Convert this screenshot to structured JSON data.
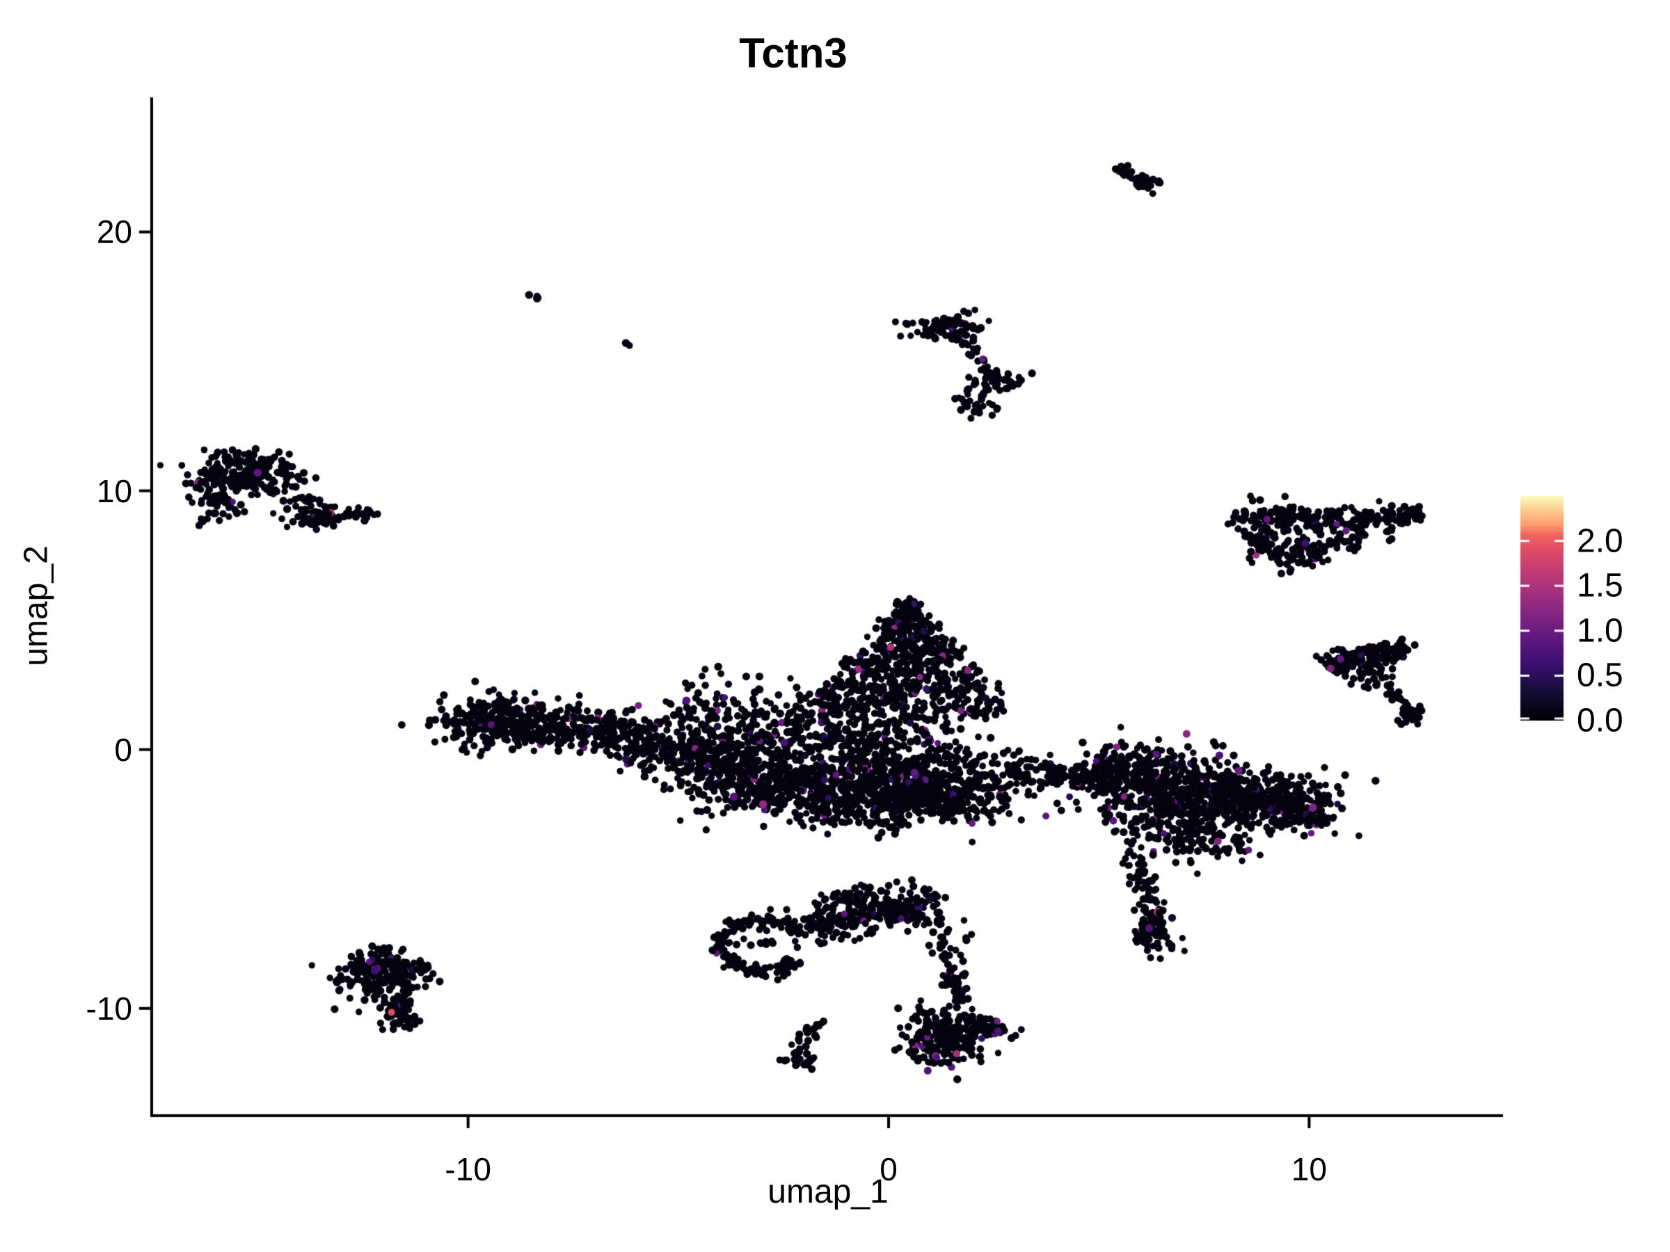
{
  "title": "Tctn3",
  "axes": {
    "x": {
      "label": "umap_1",
      "range": [
        -17.49,
        14.61
      ],
      "ticks": [
        {
          "value": -10,
          "label": "-10"
        },
        {
          "value": 0,
          "label": "0"
        },
        {
          "value": 10,
          "label": "10"
        }
      ]
    },
    "y": {
      "label": "umap_2",
      "range": [
        -14.09,
        25.2
      ],
      "ticks": [
        {
          "value": 20,
          "label": "20"
        },
        {
          "value": 10,
          "label": "10"
        },
        {
          "value": 0,
          "label": "0"
        },
        {
          "value": -10,
          "label": "-10"
        }
      ]
    }
  },
  "legend": {
    "range": [
      0,
      2.5
    ],
    "ticks": [
      {
        "value": 2.0,
        "label": "2.0"
      },
      {
        "value": 1.5,
        "label": "1.5"
      },
      {
        "value": 1.0,
        "label": "1.0"
      },
      {
        "value": 0.5,
        "label": "0.5"
      },
      {
        "value": 0.0,
        "label": "0.0"
      }
    ]
  },
  "chart_data": {
    "type": "scatter",
    "title": "Tctn3",
    "xlabel": "umap_1",
    "ylabel": "umap_2",
    "xlim": [
      -17.49,
      14.61
    ],
    "ylim": [
      -14.09,
      25.2
    ],
    "legend_limits": [
      0,
      2.5
    ],
    "point_radius_px": 5.2,
    "base_color": "#060310",
    "axis_color": "#000000",
    "colormap": [
      [
        0.0,
        "#000004"
      ],
      [
        0.13,
        "#140e36"
      ],
      [
        0.25,
        "#3b0f70"
      ],
      [
        0.38,
        "#641a80"
      ],
      [
        0.5,
        "#8c2981"
      ],
      [
        0.63,
        "#b73779"
      ],
      [
        0.75,
        "#de4968"
      ],
      [
        0.82,
        "#f1605d"
      ],
      [
        0.875,
        "#fe9f6d"
      ],
      [
        0.94,
        "#fece91"
      ],
      [
        1.0,
        "#fcfdbf"
      ]
    ],
    "clusters": [
      {
        "type": "blob",
        "c": [
          -15.35,
          10.75
        ],
        "s": [
          0.6,
          0.42
        ],
        "n": 170,
        "cf": 0.02
      },
      {
        "type": "blob",
        "c": [
          -16.0,
          9.6
        ],
        "s": [
          0.3,
          0.55
        ],
        "n": 60,
        "cf": 0.02
      },
      {
        "type": "chain",
        "from": [
          -15.0,
          10.3
        ],
        "to": [
          -13.1,
          8.95
        ],
        "j": 0.18,
        "n": 40,
        "cf": 0.03
      },
      {
        "type": "blob",
        "c": [
          -13.6,
          9.0
        ],
        "s": [
          0.38,
          0.22
        ],
        "n": 55,
        "cf": 0.02
      },
      {
        "type": "blob",
        "c": [
          -12.55,
          9.15
        ],
        "s": [
          0.2,
          0.12
        ],
        "n": 14,
        "cf": 0
      },
      {
        "type": "chain",
        "from": [
          5.5,
          22.5
        ],
        "to": [
          6.2,
          21.65
        ],
        "j": 0.1,
        "n": 42,
        "cf": 0.02
      },
      {
        "type": "blob",
        "c": [
          6.3,
          21.9
        ],
        "s": [
          0.12,
          0.08
        ],
        "n": 8,
        "cf": 0
      },
      {
        "type": "blob",
        "c": [
          1.3,
          16.3
        ],
        "s": [
          0.5,
          0.34
        ],
        "n": 75,
        "cf": 0.04
      },
      {
        "type": "chain",
        "from": [
          1.75,
          15.85
        ],
        "to": [
          2.5,
          14.45
        ],
        "j": 0.09,
        "n": 24,
        "cf": 0.03
      },
      {
        "type": "blob",
        "c": [
          2.62,
          14.2
        ],
        "s": [
          0.3,
          0.22
        ],
        "n": 40,
        "cf": 0.03
      },
      {
        "type": "blob",
        "c": [
          2.1,
          13.35
        ],
        "s": [
          0.26,
          0.28
        ],
        "n": 26,
        "cf": 0
      },
      {
        "type": "blob",
        "c": [
          1.85,
          13.95
        ],
        "s": [
          0.07,
          0.06
        ],
        "n": 3,
        "cf": 0
      },
      {
        "type": "chain",
        "from": [
          -8.5,
          17.6
        ],
        "to": [
          -8.3,
          17.4
        ],
        "j": 0.04,
        "n": 6,
        "cf": 0
      },
      {
        "type": "blob",
        "c": [
          -6.2,
          15.6
        ],
        "s": [
          0.05,
          0.05
        ],
        "n": 2,
        "cf": 0
      },
      {
        "type": "blob",
        "c": [
          -9.35,
          1.1
        ],
        "s": [
          0.75,
          0.52
        ],
        "n": 270,
        "cf": 0.03
      },
      {
        "type": "chain",
        "from": [
          -8.55,
          0.95
        ],
        "to": [
          -6.0,
          0.5
        ],
        "j": 0.42,
        "n": 230,
        "cf": 0.04
      },
      {
        "type": "chain",
        "from": [
          -5.8,
          0.3
        ],
        "to": [
          -3.4,
          -0.5
        ],
        "j": 0.55,
        "n": 260,
        "cf": 0.05
      },
      {
        "type": "blob",
        "c": [
          -4.3,
          1.5
        ],
        "s": [
          0.85,
          0.7
        ],
        "n": 80,
        "cf": 0.04
      },
      {
        "type": "tri",
        "apex": [
          0.45,
          5.75
        ],
        "base_y": 1.2,
        "half_w": 2.55,
        "j": 0.15,
        "n": 680,
        "cf": 0.05
      },
      {
        "type": "chain",
        "from": [
          -3.4,
          0.7
        ],
        "to": [
          1.4,
          0.1
        ],
        "j": 0.8,
        "n": 430,
        "cf": 0.05
      },
      {
        "type": "chain",
        "from": [
          -4.4,
          -1.2
        ],
        "to": [
          2.6,
          -1.55
        ],
        "j": 0.62,
        "n": 900,
        "cf": 0.045
      },
      {
        "type": "blob",
        "c": [
          -0.4,
          -2.3
        ],
        "s": [
          1.25,
          0.4
        ],
        "n": 170,
        "cf": 0.04
      },
      {
        "type": "chain",
        "from": [
          2.9,
          -0.9
        ],
        "to": [
          5.3,
          -1.05
        ],
        "j": 0.3,
        "n": 115,
        "cf": 0.05
      },
      {
        "type": "blob",
        "c": [
          5.65,
          -0.55
        ],
        "s": [
          0.5,
          0.42
        ],
        "n": 90,
        "cf": 0.05
      },
      {
        "type": "blob",
        "c": [
          6.6,
          -1.55
        ],
        "s": [
          1.0,
          0.8
        ],
        "n": 430,
        "cf": 0.05
      },
      {
        "type": "blob",
        "c": [
          8.6,
          -1.9
        ],
        "s": [
          0.9,
          0.55
        ],
        "n": 340,
        "cf": 0.05
      },
      {
        "type": "chain",
        "from": [
          9.3,
          -2.2
        ],
        "to": [
          10.35,
          -2.65
        ],
        "j": 0.33,
        "n": 90,
        "cf": 0.04
      },
      {
        "type": "blob",
        "c": [
          7.3,
          -3.3
        ],
        "s": [
          0.8,
          0.55
        ],
        "n": 140,
        "cf": 0.05
      },
      {
        "type": "chain",
        "from": [
          5.95,
          -4.2
        ],
        "to": [
          6.35,
          -7.0
        ],
        "j": 0.2,
        "n": 80,
        "cf": 0.03
      },
      {
        "type": "blob",
        "c": [
          6.3,
          -7.3
        ],
        "s": [
          0.28,
          0.33
        ],
        "n": 45,
        "cf": 0.03
      },
      {
        "type": "ring",
        "c": [
          -2.95,
          -7.6
        ],
        "r": 1.0,
        "j": 0.13,
        "gap": [
          -35,
          25
        ],
        "n": 155,
        "cf": 0.01
      },
      {
        "type": "blob",
        "c": [
          -2.8,
          -7.5
        ],
        "s": [
          0.45,
          0.45
        ],
        "n": 12,
        "cf": 0
      },
      {
        "type": "chain",
        "from": [
          -1.85,
          -6.75
        ],
        "to": [
          0.9,
          -5.95
        ],
        "j": 0.33,
        "n": 250,
        "cf": 0.02
      },
      {
        "type": "chain",
        "from": [
          -1.4,
          -5.9
        ],
        "to": [
          -0.3,
          -5.45
        ],
        "j": 0.2,
        "n": 35,
        "cf": 0
      },
      {
        "type": "chain",
        "from": [
          1.0,
          -6.2
        ],
        "to": [
          1.5,
          -7.7
        ],
        "j": 0.22,
        "n": 28,
        "cf": 0
      },
      {
        "type": "chain",
        "from": [
          1.45,
          -7.9
        ],
        "to": [
          1.7,
          -9.9
        ],
        "j": 0.15,
        "n": 45,
        "cf": 0.02
      },
      {
        "type": "blob",
        "c": [
          1.35,
          -11.15
        ],
        "s": [
          0.5,
          0.55
        ],
        "n": 210,
        "cf": 0.04
      },
      {
        "type": "chain",
        "from": [
          2.0,
          -10.6
        ],
        "to": [
          2.8,
          -10.95
        ],
        "j": 0.16,
        "n": 45,
        "cf": 0.03
      },
      {
        "type": "chain",
        "from": [
          -1.65,
          -10.4
        ],
        "to": [
          -2.05,
          -11.5
        ],
        "j": 0.1,
        "n": 16,
        "cf": 0
      },
      {
        "type": "blob",
        "c": [
          -2.1,
          -11.9
        ],
        "s": [
          0.22,
          0.28
        ],
        "n": 28,
        "cf": 0
      },
      {
        "type": "blob",
        "c": [
          -11.95,
          -8.6
        ],
        "s": [
          0.58,
          0.5
        ],
        "n": 200,
        "cf": 0.03
      },
      {
        "type": "chain",
        "from": [
          -11.75,
          -9.5
        ],
        "to": [
          -11.55,
          -10.45
        ],
        "j": 0.18,
        "n": 40,
        "cf": 0.02
      },
      {
        "type": "blob",
        "c": [
          -11.6,
          -10.55
        ],
        "s": [
          0.2,
          0.2
        ],
        "n": 16,
        "cf": 0
      },
      {
        "type": "chain",
        "from": [
          8.35,
          9.1
        ],
        "to": [
          11.9,
          8.85
        ],
        "j": 0.28,
        "n": 160,
        "cf": 0.04
      },
      {
        "type": "chain",
        "from": [
          8.45,
          8.7
        ],
        "to": [
          9.55,
          7.25
        ],
        "j": 0.25,
        "n": 70,
        "cf": 0.04
      },
      {
        "type": "chain",
        "from": [
          9.6,
          7.25
        ],
        "to": [
          11.35,
          8.5
        ],
        "j": 0.22,
        "n": 45,
        "cf": 0.03
      },
      {
        "type": "blob",
        "c": [
          12.15,
          8.95
        ],
        "s": [
          0.32,
          0.2
        ],
        "n": 35,
        "cf": 0.03
      },
      {
        "type": "blob",
        "c": [
          10.2,
          8.3
        ],
        "s": [
          0.7,
          0.45
        ],
        "n": 40,
        "cf": 0.04
      },
      {
        "type": "blob",
        "c": [
          10.75,
          3.3
        ],
        "s": [
          0.28,
          0.22
        ],
        "n": 45,
        "cf": 0.03
      },
      {
        "type": "chain",
        "from": [
          10.9,
          3.45
        ],
        "to": [
          12.25,
          3.95
        ],
        "j": 0.2,
        "n": 110,
        "cf": 0.03
      },
      {
        "type": "blob",
        "c": [
          11.4,
          2.85
        ],
        "s": [
          0.45,
          0.3
        ],
        "n": 26,
        "cf": 0
      },
      {
        "type": "chain",
        "from": [
          11.95,
          2.25
        ],
        "to": [
          12.4,
          1.6
        ],
        "j": 0.1,
        "n": 20,
        "cf": 0
      },
      {
        "type": "blob",
        "c": [
          12.45,
          1.3
        ],
        "s": [
          0.17,
          0.26
        ],
        "n": 26,
        "cf": 0
      },
      {
        "type": "blob",
        "c": [
          -0.2,
          -3.45
        ],
        "s": [
          0.03,
          0.03
        ],
        "n": 1,
        "cf": 0
      }
    ],
    "highlights": [
      {
        "x": -11.82,
        "y": -10.15,
        "v": 1.9
      },
      {
        "x": 1.62,
        "y": -11.75,
        "v": 1.45
      },
      {
        "x": 0.05,
        "y": 3.95,
        "v": 1.5
      },
      {
        "x": 0.75,
        "y": 2.8,
        "v": 1.2
      },
      {
        "x": -15.0,
        "y": 10.7,
        "v": 0.9
      },
      {
        "x": -5.95,
        "y": 1.7,
        "v": 1.1
      },
      {
        "x": 9.0,
        "y": 8.9,
        "v": 0.95
      },
      {
        "x": -12.35,
        "y": -8.2,
        "v": 0.85
      },
      {
        "x": -12.15,
        "y": -8.45,
        "v": 0.7
      },
      {
        "x": 1.15,
        "y": -11.9,
        "v": 0.8
      },
      {
        "x": 2.6,
        "y": -10.9,
        "v": 0.75
      },
      {
        "x": 6.2,
        "y": -6.9,
        "v": 0.8
      },
      {
        "x": -1.05,
        "y": -6.35,
        "v": 0.85
      },
      {
        "x": 10.75,
        "y": 3.5,
        "v": 0.9
      }
    ]
  }
}
